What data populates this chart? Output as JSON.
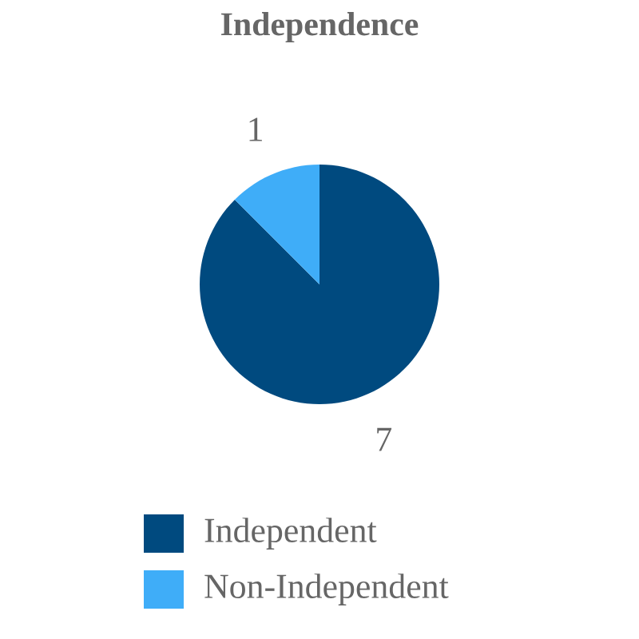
{
  "chart_data": {
    "type": "pie",
    "title": "Independence",
    "categories": [
      "Independent",
      "Non-Independent"
    ],
    "values": [
      7,
      1
    ],
    "colors": [
      "#004a7f",
      "#3fadf8"
    ],
    "data_labels": true,
    "legend": "bottom"
  }
}
